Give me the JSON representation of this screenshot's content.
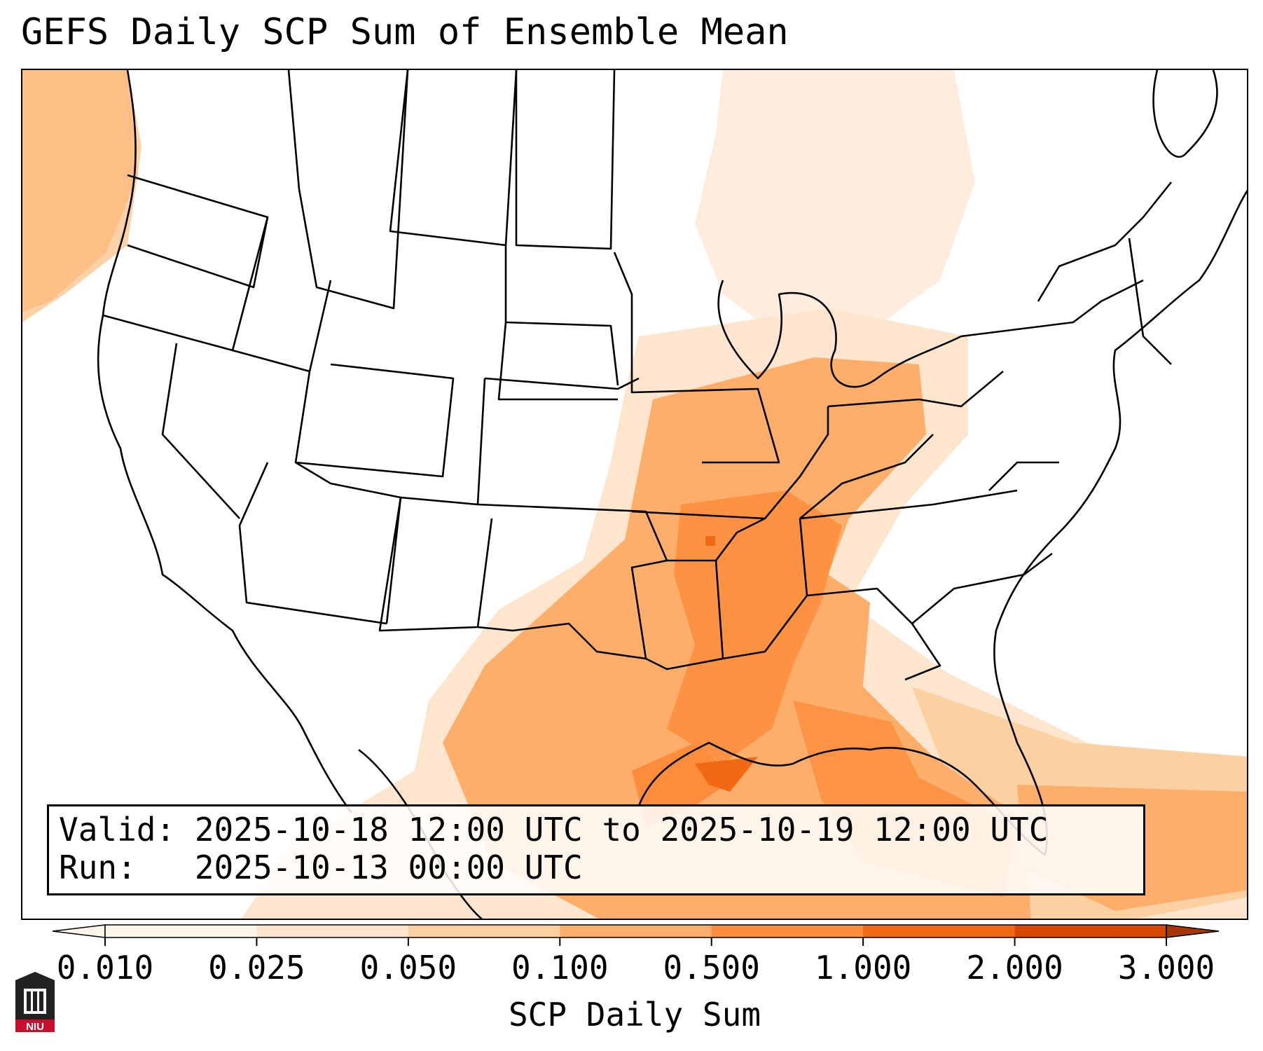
{
  "title": "GEFS Daily SCP Sum of Ensemble Mean",
  "info": {
    "valid": "Valid: 2025-10-18 12:00 UTC to 2025-10-19 12:00 UTC",
    "run": "Run:   2025-10-13 00:00 UTC"
  },
  "colorbar": {
    "label": "SCP Daily Sum",
    "ticks": [
      "0.010",
      "0.025",
      "0.050",
      "0.100",
      "0.500",
      "1.000",
      "2.000",
      "3.000"
    ],
    "colors": [
      "#fff5eb",
      "#fee6ce",
      "#fdd0a2",
      "#fdae6b",
      "#fd8d3c",
      "#f16913",
      "#d94801",
      "#a63603"
    ],
    "extend": "both"
  },
  "logo": {
    "text": "NIU",
    "icon": "niu-logo-icon"
  }
}
